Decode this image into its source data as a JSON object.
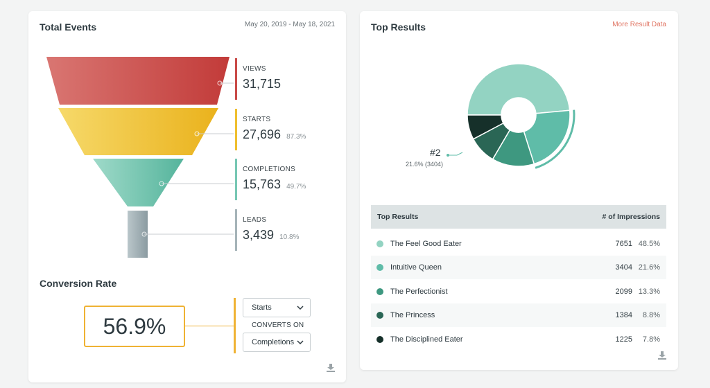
{
  "total_events": {
    "title": "Total Events",
    "date_range": "May 20, 2019 - May 18, 2021",
    "stages": [
      {
        "label": "VIEWS",
        "value": "31,715",
        "percent": "",
        "color": "#c94a47"
      },
      {
        "label": "STARTS",
        "value": "27,696",
        "percent": "87.3%",
        "color": "#efbf2e"
      },
      {
        "label": "COMPLETIONS",
        "value": "15,763",
        "percent": "49.7%",
        "color": "#76c7b3"
      },
      {
        "label": "LEADS",
        "value": "3,439",
        "percent": "10.8%",
        "color": "#a5b3b8"
      }
    ]
  },
  "conversion": {
    "title": "Conversion Rate",
    "value": "56.9%",
    "from_select": "Starts",
    "converts_label": "CONVERTS ON",
    "to_select": "Completions",
    "accent": "#efb233"
  },
  "download_icon": "download-icon",
  "top_results": {
    "title": "Top Results",
    "more_link": "More Result Data",
    "annotation": {
      "rank": "#2",
      "detail": "21.6% (3404)"
    },
    "table": {
      "col_name": "Top Results",
      "col_impressions": "# of Impressions",
      "rows": [
        {
          "name": "The Feel Good Eater",
          "impressions": "7651",
          "percent": "48.5%",
          "color": "#93d3c2"
        },
        {
          "name": "Intuitive Queen",
          "impressions": "3404",
          "percent": "21.6%",
          "color": "#5fbca8"
        },
        {
          "name": "The Perfectionist",
          "impressions": "2099",
          "percent": "13.3%",
          "color": "#3e9880"
        },
        {
          "name": "The Princess",
          "impressions": "1384",
          "percent": "8.8%",
          "color": "#2a6655"
        },
        {
          "name": "The Disciplined Eater",
          "impressions": "1225",
          "percent": "7.8%",
          "color": "#16302a"
        }
      ]
    }
  }
}
